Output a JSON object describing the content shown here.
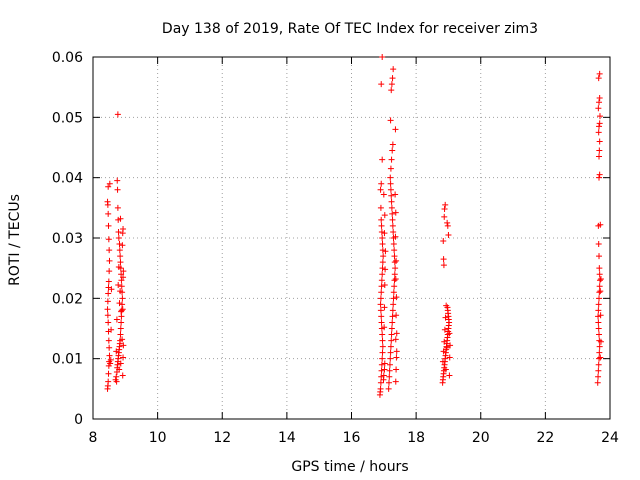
{
  "chart_data": {
    "type": "scatter",
    "title": "Day 138 of 2019, Rate Of TEC Index for receiver zim3",
    "xlabel": "GPS time / hours",
    "ylabel": "ROTI / TECUs",
    "xlim": [
      8,
      24
    ],
    "ylim": [
      0,
      0.06
    ],
    "x_ticks": [
      8,
      10,
      12,
      14,
      16,
      18,
      20,
      22,
      24
    ],
    "y_ticks": [
      0,
      0.01,
      0.02,
      0.03,
      0.04,
      0.05,
      0.06
    ],
    "x_tick_labels": [
      "8",
      "10",
      "12",
      "14",
      "16",
      "18",
      "20",
      "22",
      "24"
    ],
    "y_tick_labels": [
      "0",
      "0.01",
      "0.02",
      "0.03",
      "0.04",
      "0.05",
      "0.06"
    ],
    "grid": true,
    "marker": "+",
    "color": "#ff0000",
    "series": [
      {
        "name": "ROTI",
        "points": [
          [
            8.45,
            0.005
          ],
          [
            8.46,
            0.0055
          ],
          [
            8.47,
            0.0062
          ],
          [
            8.48,
            0.0075
          ],
          [
            8.49,
            0.0088
          ],
          [
            8.5,
            0.0095
          ],
          [
            8.51,
            0.0105
          ],
          [
            8.5,
            0.0118
          ],
          [
            8.49,
            0.013
          ],
          [
            8.48,
            0.0145
          ],
          [
            8.47,
            0.016
          ],
          [
            8.46,
            0.0172
          ],
          [
            8.45,
            0.0182
          ],
          [
            8.46,
            0.0195
          ],
          [
            8.47,
            0.0208
          ],
          [
            8.48,
            0.0218
          ],
          [
            8.49,
            0.0228
          ],
          [
            8.5,
            0.0245
          ],
          [
            8.51,
            0.0262
          ],
          [
            8.5,
            0.028
          ],
          [
            8.49,
            0.0298
          ],
          [
            8.48,
            0.032
          ],
          [
            8.47,
            0.034
          ],
          [
            8.46,
            0.0355
          ],
          [
            8.45,
            0.036
          ],
          [
            8.47,
            0.0385
          ],
          [
            8.52,
            0.039
          ],
          [
            8.53,
            0.0092
          ],
          [
            8.55,
            0.0098
          ],
          [
            8.56,
            0.0148
          ],
          [
            8.57,
            0.0215
          ],
          [
            8.7,
            0.0065
          ],
          [
            8.72,
            0.007
          ],
          [
            8.74,
            0.0078
          ],
          [
            8.75,
            0.0085
          ],
          [
            8.76,
            0.009
          ],
          [
            8.77,
            0.0095
          ],
          [
            8.78,
            0.01
          ],
          [
            8.79,
            0.0105
          ],
          [
            8.8,
            0.011
          ],
          [
            8.81,
            0.0115
          ],
          [
            8.82,
            0.012
          ],
          [
            8.83,
            0.0125
          ],
          [
            8.84,
            0.013
          ],
          [
            8.85,
            0.014
          ],
          [
            8.86,
            0.015
          ],
          [
            8.87,
            0.016
          ],
          [
            8.88,
            0.017
          ],
          [
            8.89,
            0.018
          ],
          [
            8.9,
            0.019
          ],
          [
            8.91,
            0.02
          ],
          [
            8.9,
            0.021
          ],
          [
            8.89,
            0.022
          ],
          [
            8.88,
            0.023
          ],
          [
            8.87,
            0.024
          ],
          [
            8.86,
            0.025
          ],
          [
            8.85,
            0.026
          ],
          [
            8.84,
            0.027
          ],
          [
            8.83,
            0.028
          ],
          [
            8.82,
            0.029
          ],
          [
            8.8,
            0.03
          ],
          [
            8.79,
            0.031
          ],
          [
            8.78,
            0.033
          ],
          [
            8.77,
            0.035
          ],
          [
            8.76,
            0.038
          ],
          [
            8.75,
            0.0395
          ],
          [
            8.77,
            0.0505
          ],
          [
            8.73,
            0.0062
          ],
          [
            8.81,
            0.0082
          ],
          [
            8.86,
            0.0092
          ],
          [
            8.92,
            0.0072
          ],
          [
            8.93,
            0.0102
          ],
          [
            8.94,
            0.0122
          ],
          [
            8.9,
            0.0132
          ],
          [
            8.87,
            0.0178
          ],
          [
            8.92,
            0.0182
          ],
          [
            8.93,
            0.0235
          ],
          [
            8.94,
            0.0245
          ],
          [
            8.91,
            0.0288
          ],
          [
            8.92,
            0.0308
          ],
          [
            8.93,
            0.0315
          ],
          [
            8.78,
            0.0222
          ],
          [
            8.8,
            0.0252
          ],
          [
            8.74,
            0.0165
          ],
          [
            8.72,
            0.0112
          ],
          [
            8.82,
            0.0192
          ],
          [
            8.84,
            0.0212
          ],
          [
            8.85,
            0.0332
          ],
          [
            16.88,
            0.004
          ],
          [
            16.89,
            0.0045
          ],
          [
            16.9,
            0.005
          ],
          [
            16.91,
            0.006
          ],
          [
            16.92,
            0.007
          ],
          [
            16.93,
            0.008
          ],
          [
            16.94,
            0.009
          ],
          [
            16.95,
            0.01
          ],
          [
            16.96,
            0.011
          ],
          [
            16.97,
            0.012
          ],
          [
            16.96,
            0.013
          ],
          [
            16.95,
            0.014
          ],
          [
            16.94,
            0.015
          ],
          [
            16.93,
            0.016
          ],
          [
            16.92,
            0.017
          ],
          [
            16.91,
            0.018
          ],
          [
            16.9,
            0.019
          ],
          [
            16.91,
            0.02
          ],
          [
            16.92,
            0.021
          ],
          [
            16.93,
            0.022
          ],
          [
            16.94,
            0.023
          ],
          [
            16.95,
            0.024
          ],
          [
            16.96,
            0.025
          ],
          [
            16.97,
            0.026
          ],
          [
            16.98,
            0.027
          ],
          [
            16.97,
            0.028
          ],
          [
            16.96,
            0.029
          ],
          [
            16.95,
            0.03
          ],
          [
            16.94,
            0.031
          ],
          [
            16.93,
            0.032
          ],
          [
            16.92,
            0.033
          ],
          [
            16.91,
            0.035
          ],
          [
            16.9,
            0.038
          ],
          [
            16.92,
            0.039
          ],
          [
            16.95,
            0.043
          ],
          [
            16.92,
            0.0555
          ],
          [
            16.95,
            0.06
          ],
          [
            16.99,
            0.0065
          ],
          [
            17.0,
            0.0072
          ],
          [
            17.02,
            0.0082
          ],
          [
            17.03,
            0.0092
          ],
          [
            17.01,
            0.0152
          ],
          [
            17.02,
            0.0185
          ],
          [
            17.03,
            0.0222
          ],
          [
            17.04,
            0.0248
          ],
          [
            17.05,
            0.0278
          ],
          [
            17.02,
            0.0308
          ],
          [
            17.03,
            0.0338
          ],
          [
            17.0,
            0.0372
          ],
          [
            17.15,
            0.005
          ],
          [
            17.16,
            0.006
          ],
          [
            17.17,
            0.007
          ],
          [
            17.18,
            0.008
          ],
          [
            17.19,
            0.009
          ],
          [
            17.2,
            0.01
          ],
          [
            17.21,
            0.011
          ],
          [
            17.22,
            0.012
          ],
          [
            17.23,
            0.013
          ],
          [
            17.24,
            0.014
          ],
          [
            17.25,
            0.015
          ],
          [
            17.26,
            0.016
          ],
          [
            17.27,
            0.017
          ],
          [
            17.28,
            0.018
          ],
          [
            17.29,
            0.019
          ],
          [
            17.3,
            0.02
          ],
          [
            17.31,
            0.021
          ],
          [
            17.32,
            0.022
          ],
          [
            17.33,
            0.023
          ],
          [
            17.34,
            0.024
          ],
          [
            17.35,
            0.025
          ],
          [
            17.34,
            0.026
          ],
          [
            17.33,
            0.027
          ],
          [
            17.32,
            0.028
          ],
          [
            17.31,
            0.029
          ],
          [
            17.3,
            0.03
          ],
          [
            17.29,
            0.031
          ],
          [
            17.28,
            0.032
          ],
          [
            17.27,
            0.033
          ],
          [
            17.26,
            0.034
          ],
          [
            17.25,
            0.035
          ],
          [
            17.24,
            0.036
          ],
          [
            17.23,
            0.037
          ],
          [
            17.22,
            0.038
          ],
          [
            17.21,
            0.039
          ],
          [
            17.2,
            0.04
          ],
          [
            17.22,
            0.0415
          ],
          [
            17.24,
            0.043
          ],
          [
            17.26,
            0.0445
          ],
          [
            17.28,
            0.0455
          ],
          [
            17.21,
            0.0495
          ],
          [
            17.23,
            0.0545
          ],
          [
            17.25,
            0.0555
          ],
          [
            17.27,
            0.0565
          ],
          [
            17.29,
            0.058
          ],
          [
            17.36,
            0.048
          ],
          [
            17.37,
            0.0062
          ],
          [
            17.38,
            0.0082
          ],
          [
            17.39,
            0.0102
          ],
          [
            17.37,
            0.0132
          ],
          [
            17.38,
            0.0172
          ],
          [
            17.39,
            0.0202
          ],
          [
            17.37,
            0.0232
          ],
          [
            17.38,
            0.0262
          ],
          [
            17.36,
            0.0302
          ],
          [
            17.37,
            0.0342
          ],
          [
            17.35,
            0.0372
          ],
          [
            17.4,
            0.0112
          ],
          [
            17.4,
            0.0142
          ],
          [
            18.82,
            0.006
          ],
          [
            18.83,
            0.0065
          ],
          [
            18.84,
            0.007
          ],
          [
            18.85,
            0.0075
          ],
          [
            18.86,
            0.008
          ],
          [
            18.87,
            0.0085
          ],
          [
            18.88,
            0.009
          ],
          [
            18.89,
            0.0095
          ],
          [
            18.9,
            0.01
          ],
          [
            18.91,
            0.0105
          ],
          [
            18.92,
            0.011
          ],
          [
            18.93,
            0.0115
          ],
          [
            18.94,
            0.012
          ],
          [
            18.95,
            0.0125
          ],
          [
            18.96,
            0.013
          ],
          [
            18.97,
            0.0135
          ],
          [
            18.98,
            0.014
          ],
          [
            18.99,
            0.0145
          ],
          [
            19.0,
            0.015
          ],
          [
            19.01,
            0.0155
          ],
          [
            19.02,
            0.016
          ],
          [
            19.01,
            0.0165
          ],
          [
            19.0,
            0.017
          ],
          [
            18.99,
            0.0175
          ],
          [
            18.98,
            0.018
          ],
          [
            18.97,
            0.0185
          ],
          [
            18.83,
            0.0095
          ],
          [
            18.85,
            0.0112
          ],
          [
            18.87,
            0.0128
          ],
          [
            18.89,
            0.0148
          ],
          [
            18.91,
            0.0168
          ],
          [
            18.93,
            0.0188
          ],
          [
            19.03,
            0.0072
          ],
          [
            19.04,
            0.0102
          ],
          [
            19.05,
            0.0122
          ],
          [
            19.03,
            0.0142
          ],
          [
            18.84,
            0.0295
          ],
          [
            18.85,
            0.0265
          ],
          [
            18.86,
            0.0255
          ],
          [
            18.87,
            0.0335
          ],
          [
            18.88,
            0.0348
          ],
          [
            18.9,
            0.0355
          ],
          [
            18.96,
            0.0325
          ],
          [
            18.98,
            0.032
          ],
          [
            19.0,
            0.0305
          ],
          [
            18.95,
            0.0118
          ],
          [
            18.92,
            0.0082
          ],
          [
            23.62,
            0.006
          ],
          [
            23.63,
            0.007
          ],
          [
            23.64,
            0.008
          ],
          [
            23.65,
            0.009
          ],
          [
            23.66,
            0.01
          ],
          [
            23.67,
            0.011
          ],
          [
            23.68,
            0.012
          ],
          [
            23.67,
            0.013
          ],
          [
            23.66,
            0.014
          ],
          [
            23.65,
            0.015
          ],
          [
            23.64,
            0.016
          ],
          [
            23.63,
            0.017
          ],
          [
            23.64,
            0.018
          ],
          [
            23.65,
            0.019
          ],
          [
            23.66,
            0.02
          ],
          [
            23.67,
            0.021
          ],
          [
            23.68,
            0.022
          ],
          [
            23.69,
            0.023
          ],
          [
            23.68,
            0.024
          ],
          [
            23.67,
            0.025
          ],
          [
            23.66,
            0.027
          ],
          [
            23.65,
            0.029
          ],
          [
            23.64,
            0.032
          ],
          [
            23.7,
            0.0322
          ],
          [
            23.66,
            0.04
          ],
          [
            23.68,
            0.0405
          ],
          [
            23.66,
            0.0435
          ],
          [
            23.67,
            0.0445
          ],
          [
            23.68,
            0.046
          ],
          [
            23.65,
            0.0475
          ],
          [
            23.66,
            0.0485
          ],
          [
            23.68,
            0.049
          ],
          [
            23.69,
            0.0502
          ],
          [
            23.64,
            0.0515
          ],
          [
            23.66,
            0.0525
          ],
          [
            23.68,
            0.0532
          ],
          [
            23.65,
            0.0565
          ],
          [
            23.68,
            0.0572
          ],
          [
            23.7,
            0.0102
          ],
          [
            23.72,
            0.0128
          ],
          [
            23.71,
            0.0172
          ],
          [
            23.7,
            0.0212
          ],
          [
            23.72,
            0.0232
          ]
        ]
      }
    ]
  }
}
